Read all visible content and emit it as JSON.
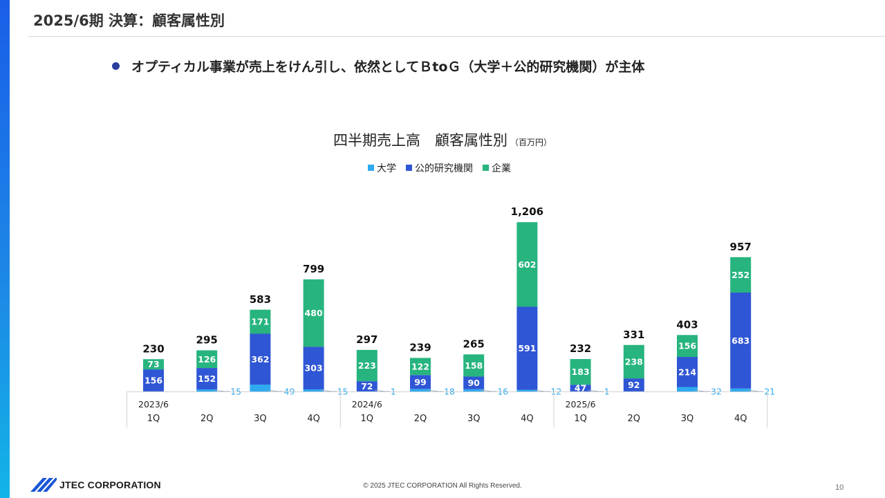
{
  "slide": {
    "title": "2025/6期 決算：顧客属性別",
    "bullet": "オプティカル事業が売上をけん引し、依然としてＢtoＧ（大学＋公的研究機関）が主体"
  },
  "footer": {
    "logo_text": "JTEC CORPORATION",
    "copyright": "© 2025 JTEC CORPORATION All Rights Reserved.",
    "page_number": "10"
  },
  "colors": {
    "univ": "#2eaaf0",
    "public": "#2f56d4",
    "corp": "#27b47f",
    "label_light": "#2eaaf0"
  },
  "chart_data": {
    "type": "bar",
    "stacked": true,
    "title": "四半期売上高　顧客属性別",
    "title_unit": "（百万円）",
    "legend_position": "top",
    "categories": [
      "1Q",
      "2Q",
      "3Q",
      "4Q",
      "1Q",
      "2Q",
      "3Q",
      "4Q",
      "1Q",
      "2Q",
      "3Q",
      "4Q"
    ],
    "year_labels": [
      {
        "label": "2023/6",
        "index": 0
      },
      {
        "label": "2024/6",
        "index": 4
      },
      {
        "label": "2025/6",
        "index": 8
      }
    ],
    "series": [
      {
        "name": "大学",
        "values": [
          1,
          15,
          49,
          15,
          1,
          18,
          16,
          12,
          1,
          1,
          32,
          21
        ],
        "labels": [
          "",
          "15",
          "49",
          "15",
          "1",
          "18",
          "16",
          "12",
          "1",
          "",
          "32",
          "21"
        ]
      },
      {
        "name": "公的研究機関",
        "values": [
          156,
          152,
          362,
          303,
          72,
          99,
          90,
          591,
          47,
          92,
          214,
          683
        ],
        "labels": [
          "156",
          "152",
          "362",
          "303",
          "72",
          "99",
          "90",
          "591",
          "47",
          "92",
          "214",
          "683"
        ]
      },
      {
        "name": "企業",
        "values": [
          73,
          126,
          171,
          480,
          223,
          122,
          158,
          602,
          183,
          238,
          156,
          252
        ],
        "labels": [
          "73",
          "126",
          "171",
          "480",
          "223",
          "122",
          "158",
          "602",
          "183",
          "238",
          "156",
          "252"
        ]
      }
    ],
    "totals": [
      "230",
      "295",
      "583",
      "799",
      "297",
      "239",
      "265",
      "1,206",
      "232",
      "331",
      "403",
      "957"
    ],
    "ylim": [
      0,
      1206
    ]
  }
}
